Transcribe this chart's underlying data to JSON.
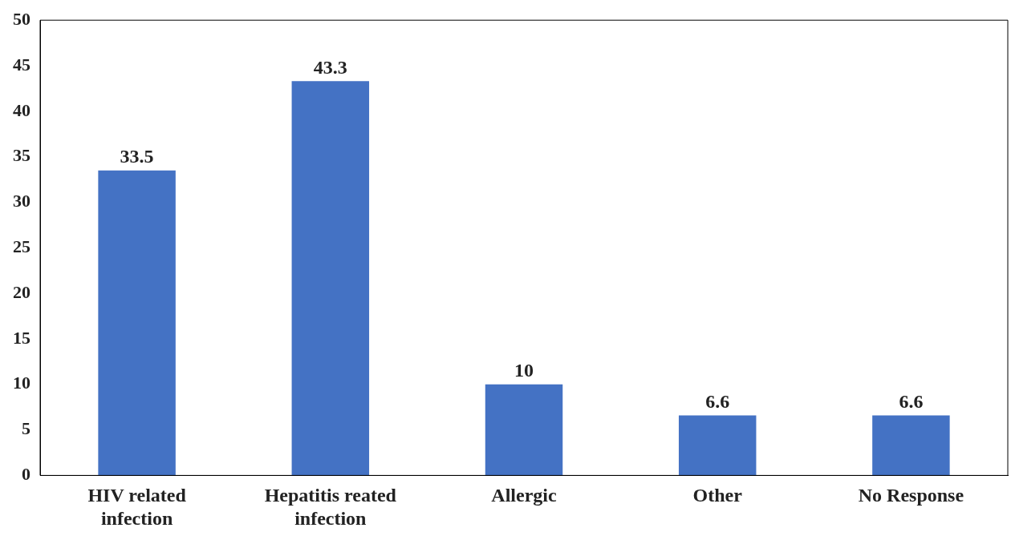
{
  "chart_data": {
    "type": "bar",
    "categories": [
      "HIV related infection",
      "Hepatitis reated infection",
      "Allergic",
      "Other",
      "No Response"
    ],
    "values": [
      33.5,
      43.3,
      10,
      6.6,
      6.6
    ],
    "color": "#4472c4",
    "ylim": [
      0,
      50
    ],
    "yticks": [
      0,
      5,
      10,
      15,
      20,
      25,
      30,
      35,
      40,
      45,
      50
    ],
    "grid": false,
    "legend": false,
    "data_labels": true
  }
}
